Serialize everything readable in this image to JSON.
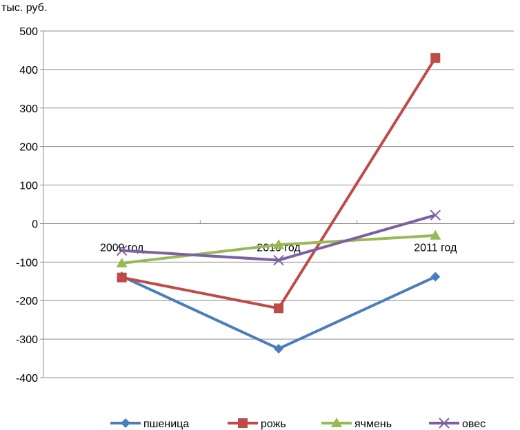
{
  "chart_data": {
    "type": "line",
    "unit_label": "тыс. руб.",
    "categories": [
      "2009 год",
      "2010 год",
      "2011 год"
    ],
    "ylim": [
      -400,
      500
    ],
    "yticks": [
      500,
      400,
      300,
      200,
      100,
      0,
      -100,
      -200,
      -300,
      -400
    ],
    "grid": true,
    "legend_position": "bottom",
    "series": [
      {
        "name": "пшеница",
        "marker": "diamond",
        "color": "#4a7ebb",
        "values": [
          -137,
          -325,
          -138
        ]
      },
      {
        "name": "рожь",
        "marker": "square",
        "color": "#be4b48",
        "values": [
          -140,
          -220,
          430
        ]
      },
      {
        "name": "ячмень",
        "marker": "triangle",
        "color": "#98b954",
        "values": [
          -103,
          -55,
          -31
        ]
      },
      {
        "name": "овес",
        "marker": "x",
        "color": "#7d60a0",
        "values": [
          -70,
          -95,
          22
        ]
      }
    ]
  }
}
